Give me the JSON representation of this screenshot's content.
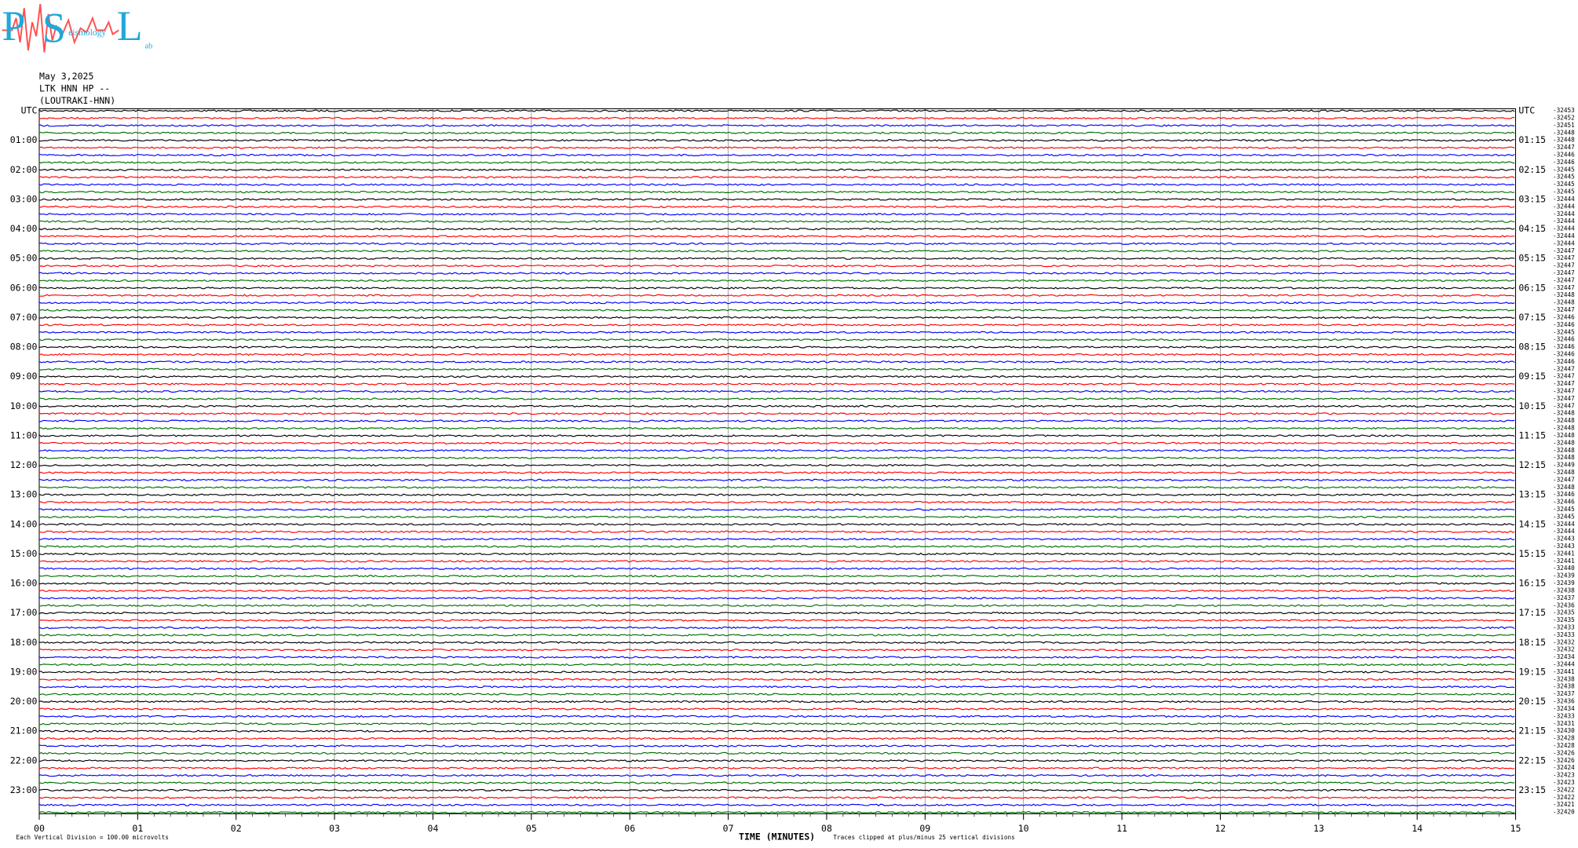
{
  "chart_data": {
    "type": "helicorder",
    "title": "May 3,2025",
    "subtitle": "LTK HNN HP --",
    "station": "(LOUTRAKI-HNN)",
    "left_labels": [
      "UTC",
      "01:00",
      "02:00",
      "03:00",
      "04:00",
      "05:00",
      "06:00",
      "07:00",
      "08:00",
      "09:00",
      "10:00",
      "11:00",
      "12:00",
      "13:00",
      "14:00",
      "15:00",
      "16:00",
      "17:00",
      "18:00",
      "19:00",
      "20:00",
      "21:00",
      "22:00",
      "23:00"
    ],
    "right_labels": [
      "UTC",
      "01:15",
      "02:15",
      "03:15",
      "04:15",
      "05:15",
      "06:15",
      "07:15",
      "08:15",
      "09:15",
      "10:15",
      "11:15",
      "12:15",
      "13:15",
      "14:15",
      "15:15",
      "16:15",
      "17:15",
      "18:15",
      "19:15",
      "20:15",
      "21:15",
      "22:15",
      "23:15"
    ],
    "offsets": [
      -32453,
      -32452,
      -32451,
      -32448,
      -32448,
      -32447,
      -32446,
      -32446,
      -32445,
      -32445,
      -32445,
      -32445,
      -32444,
      -32444,
      -32444,
      -32444,
      -32444,
      -32444,
      -32444,
      -32447,
      -32447,
      -32447,
      -32447,
      -32447,
      -32447,
      -32448,
      -32448,
      -32447,
      -32446,
      -32446,
      -32445,
      -32446,
      -32446,
      -32446,
      -32446,
      -32447,
      -32447,
      -32447,
      -32447,
      -32447,
      -32447,
      -32448,
      -32448,
      -32448,
      -32448,
      -32448,
      -32448,
      -32448,
      -32449,
      -32448,
      -32447,
      -32448,
      -32446,
      -32446,
      -32445,
      -32445,
      -32444,
      -32444,
      -32443,
      -32443,
      -32441,
      -32441,
      -32440,
      -32439,
      -32439,
      -32438,
      -32437,
      -32436,
      -32435,
      -32435,
      -32433,
      -32433,
      -32432,
      -32432,
      -32434,
      -32444,
      -32441,
      -32438,
      -32438,
      -32437,
      -32436,
      -32434,
      -32433,
      -32431,
      -32430,
      -32428,
      -32428,
      -32426,
      -32426,
      -32424,
      -32423,
      -32423,
      -32422,
      -32422,
      -32421,
      -32420
    ],
    "xlim": [
      0,
      15
    ],
    "xticks": [
      {
        "value": 0,
        "label": "00"
      },
      {
        "value": 1,
        "label": "01"
      },
      {
        "value": 2,
        "label": "02"
      },
      {
        "value": 3,
        "label": "03"
      },
      {
        "value": 4,
        "label": "04"
      },
      {
        "value": 5,
        "label": "05"
      },
      {
        "value": 6,
        "label": "06"
      },
      {
        "value": 7,
        "label": "07"
      },
      {
        "value": 8,
        "label": "08"
      },
      {
        "value": 9,
        "label": "09"
      },
      {
        "value": 10,
        "label": "10"
      },
      {
        "value": 11,
        "label": "11"
      },
      {
        "value": 12,
        "label": "12"
      },
      {
        "value": 13,
        "label": "13"
      },
      {
        "value": 14,
        "label": "14"
      },
      {
        "value": 15,
        "label": "15"
      }
    ],
    "xlabel": "TIME (MINUTES)",
    "scale_note": "Each Vertical Division =  100.00 microvolts",
    "clip_note": "Traces clipped at plus/minus 25 vertical divisions",
    "colors": [
      "#000000",
      "#ff0000",
      "#0000ff",
      "#007000"
    ],
    "grid": true
  },
  "logo": {
    "letters": [
      "P",
      "S",
      "L"
    ],
    "words": [
      "eismology",
      "ab"
    ]
  }
}
